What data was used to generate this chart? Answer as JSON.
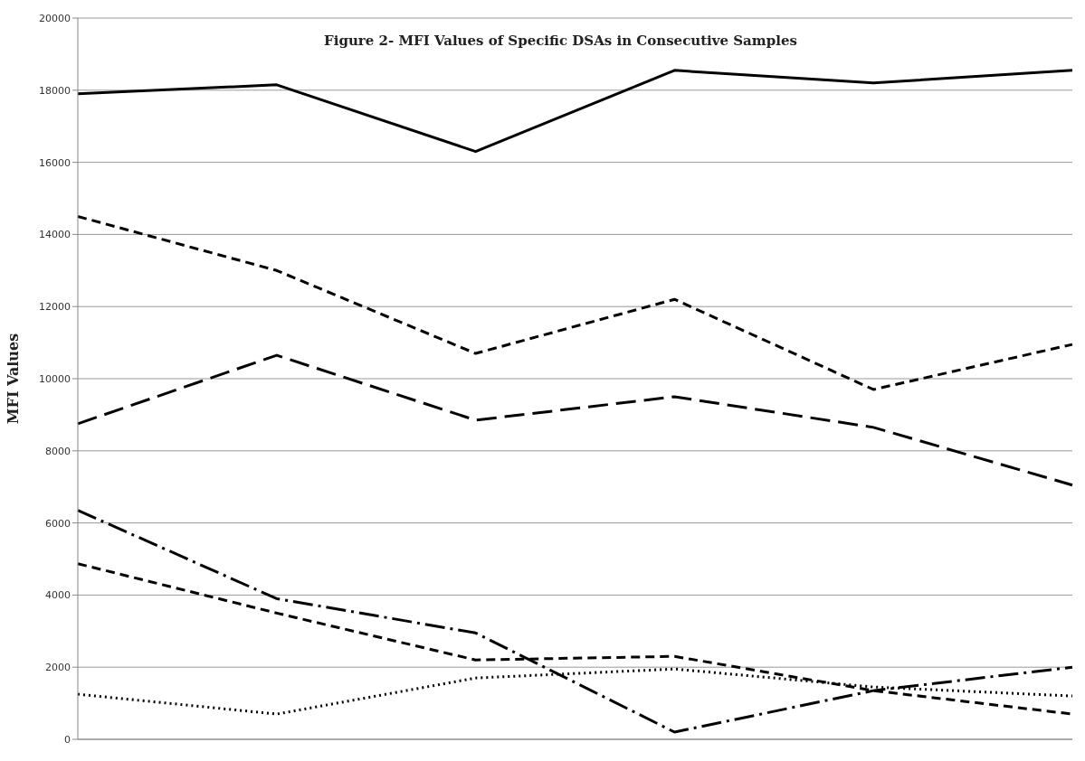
{
  "chart_data": {
    "type": "line",
    "title": "Figure 2- MFI Values of Specific DSAs in Consecutive Samples",
    "ylabel": "MFI Values",
    "categories": [
      null,
      null,
      null,
      null,
      null,
      null
    ],
    "series": [
      {
        "color": "#000000",
        "line_style": "solid",
        "values": [
          17900,
          18150,
          16300,
          18550,
          18200,
          18550
        ]
      },
      {
        "color": "#000000",
        "line_style": "dashed",
        "values": [
          14500,
          13000,
          10700,
          12200,
          9700,
          10950
        ]
      },
      {
        "color": "#000000",
        "line_style": "longdashed",
        "values": [
          8750,
          10650,
          8850,
          9500,
          8650,
          7050
        ]
      },
      {
        "color": "#000000",
        "line_style": "dashdot",
        "values": [
          6350,
          3900,
          2950,
          200,
          1350,
          2000
        ]
      },
      {
        "color": "#000000",
        "line_style": "dashed",
        "values": [
          4870,
          3500,
          2200,
          2300,
          1350,
          700
        ]
      },
      {
        "color": "#000000",
        "line_style": "dotted",
        "values": [
          1250,
          700,
          1700,
          1950,
          1450,
          1200
        ]
      }
    ],
    "ylim": [
      0,
      20000
    ],
    "yticks": [
      0,
      2000,
      4000,
      6000,
      8000,
      10000,
      12000,
      14000,
      16000,
      18000,
      20000
    ],
    "grid": "y",
    "marker": "none",
    "legend": false
  }
}
